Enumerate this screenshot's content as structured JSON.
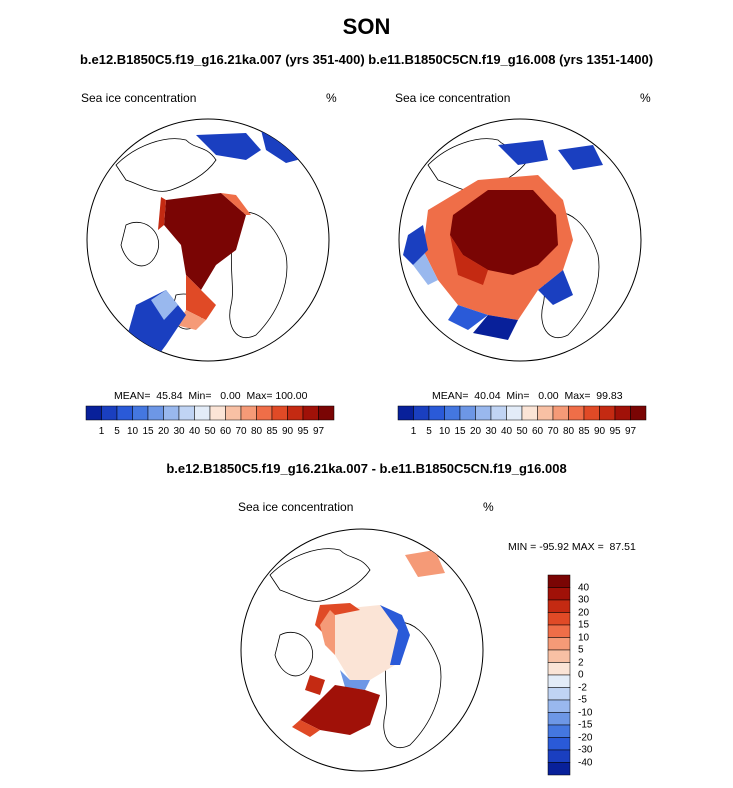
{
  "figure": {
    "title": "SON",
    "subtitle": "b.e12.B1850C5.f19_g16.21ka.007 (yrs 351-400) b.e11.B1850C5CN.f19_g16.008 (yrs 1351-1400)",
    "diff_title": "b.e12.B1850C5.f19_g16.21ka.007 - b.e11.B1850C5CN.f19_g16.008"
  },
  "panels": [
    {
      "variable": "Sea ice concentration",
      "units": "%",
      "stats_text": "MEAN=  45.84  Min=   0.00  Max= 100.00"
    },
    {
      "variable": "Sea ice concentration",
      "units": "%",
      "stats_text": "MEAN=  40.04  Min=   0.00  Max=  99.83"
    },
    {
      "variable": "Sea ice concentration",
      "units": "%",
      "stats_text": "MIN = -95.92 MAX =  87.51"
    }
  ],
  "colorbar_abs": {
    "labels": [
      "1",
      "5",
      "10",
      "15",
      "20",
      "30",
      "40",
      "50",
      "60",
      "70",
      "80",
      "85",
      "90",
      "95",
      "97"
    ],
    "colors": [
      "#08209a",
      "#1a3fc0",
      "#2a5ad8",
      "#4477e0",
      "#6d97e6",
      "#99b8ee",
      "#c0d4f4",
      "#e3ecf8",
      "#fbe4d6",
      "#f8c0a4",
      "#f59a77",
      "#ef6e48",
      "#e04a26",
      "#c42a12",
      "#a01108",
      "#7a0504"
    ]
  },
  "colorbar_diff": {
    "labels": [
      "40",
      "30",
      "20",
      "15",
      "10",
      "5",
      "2",
      "0",
      "-2",
      "-5",
      "-10",
      "-15",
      "-20",
      "-30",
      "-40"
    ],
    "colors": [
      "#7a0504",
      "#a01108",
      "#c42a12",
      "#e04a26",
      "#ef6e48",
      "#f59a77",
      "#f8c0a4",
      "#fbe4d6",
      "#e3ecf8",
      "#c0d4f4",
      "#99b8ee",
      "#6d97e6",
      "#4477e0",
      "#2a5ad8",
      "#1a3fc0",
      "#08209a"
    ]
  }
}
